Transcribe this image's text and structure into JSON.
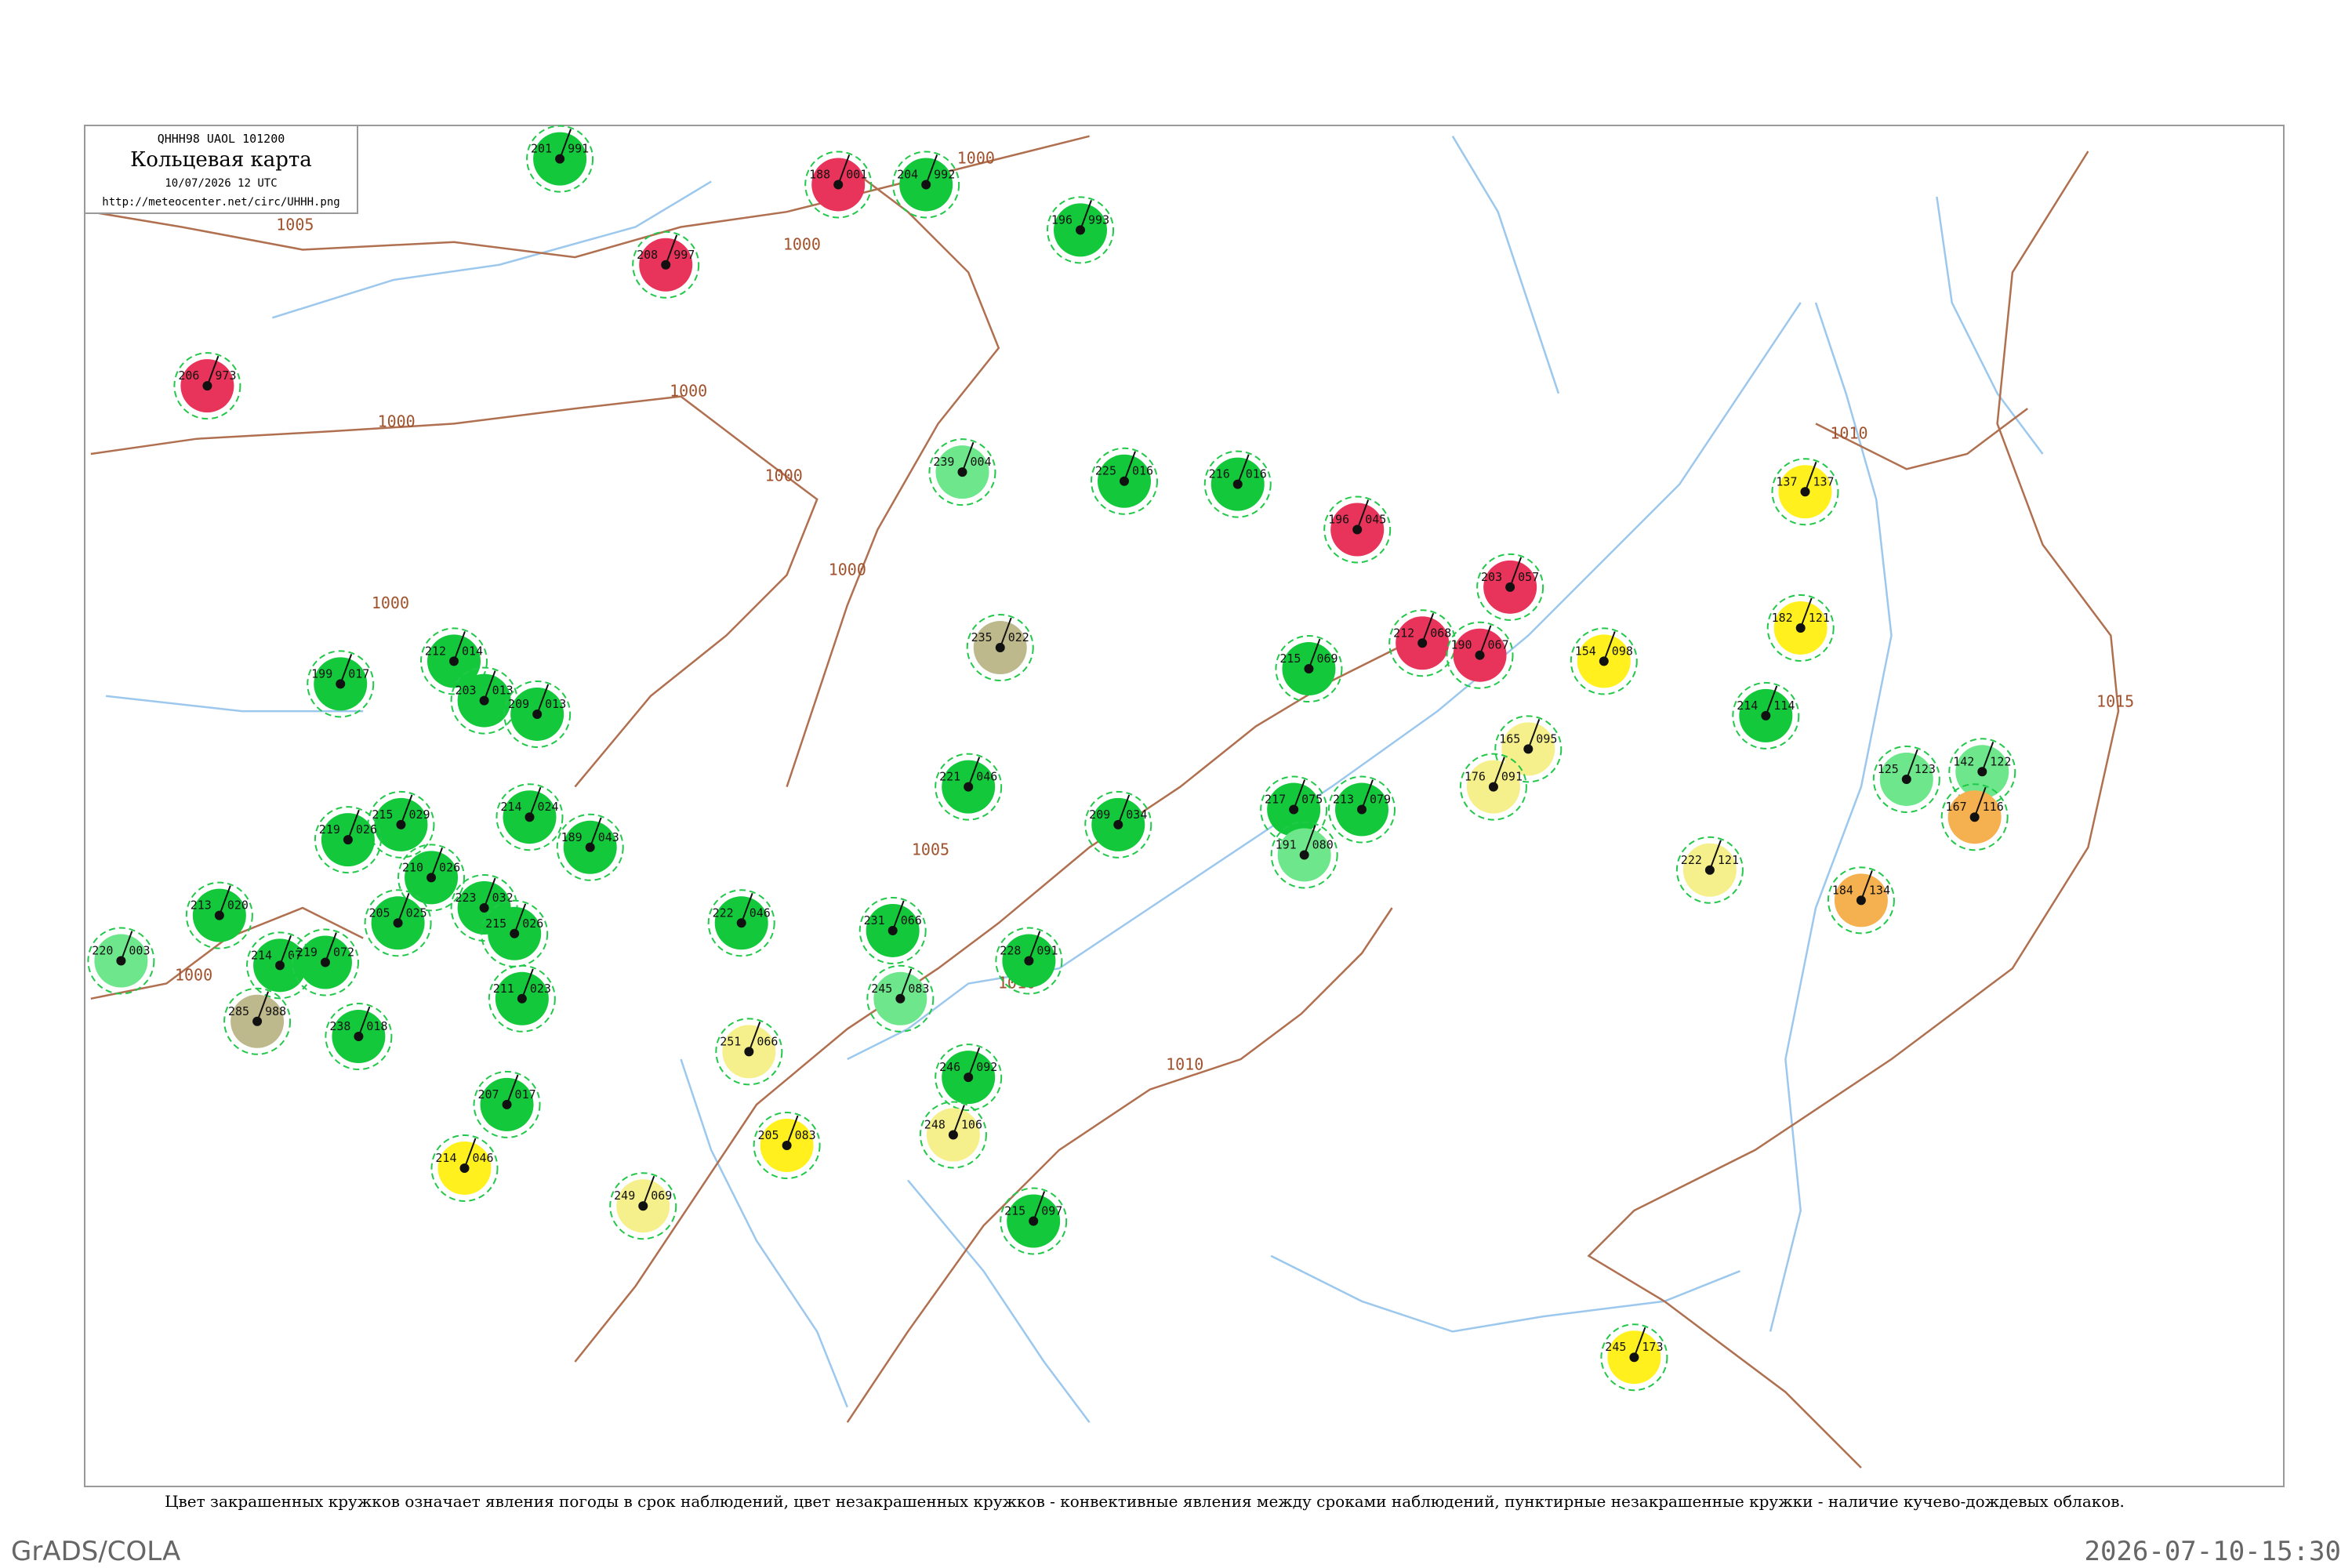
{
  "header": {
    "code": "QHHH98  UAOL  101200",
    "title": "Кольцевая карта",
    "time": "10/07/2026 12 UTC",
    "url": "http://meteocenter.net/circ/UHHH.png"
  },
  "caption": "Цвет закрашенных кружков означает явления погоды в срок наблюдений, цвет незакрашенных кружков - конвективные явления между сроками наблюдений, пунктирные незакрашенные кружки - наличие кучево-дождевых облаков.",
  "footer_left": "GrADS/COLA",
  "footer_right": "2026-07-10-15:30",
  "isobars": [
    "1005",
    "1000",
    "1000",
    "1000",
    "1000",
    "1000",
    "1005",
    "1010",
    "1010",
    "1000",
    "1000",
    "1010",
    "1015",
    "1000"
  ],
  "stations": [
    {
      "temp": "201",
      "press": "991",
      "color": "#14c83c"
    },
    {
      "temp": "188",
      "press": "001",
      "color": "#e8335a"
    },
    {
      "temp": "204",
      "press": "992",
      "color": "#14c83c"
    },
    {
      "temp": "196",
      "press": "993",
      "color": "#14c83c"
    },
    {
      "temp": "208",
      "press": "997",
      "color": "#e8335a"
    },
    {
      "temp": "206",
      "press": "973",
      "color": "#e8335a"
    },
    {
      "temp": "225",
      "press": "016",
      "color": "#14c83c"
    },
    {
      "temp": "216",
      "press": "016",
      "color": "#14c83c"
    },
    {
      "temp": "196",
      "press": "045",
      "color": "#e8335a"
    },
    {
      "temp": "239",
      "press": "004",
      "color": "#6ee68c"
    },
    {
      "temp": "203",
      "press": "057",
      "color": "#e8335a"
    },
    {
      "temp": "212",
      "press": "068",
      "color": "#e8335a"
    },
    {
      "temp": "190",
      "press": "067",
      "color": "#e8335a"
    },
    {
      "temp": "215",
      "press": "069",
      "color": "#14c83c"
    },
    {
      "temp": "199",
      "press": "017",
      "color": "#14c83c"
    },
    {
      "temp": "212",
      "press": "014",
      "color": "#14c83c"
    },
    {
      "temp": "203",
      "press": "013",
      "color": "#14c83c"
    },
    {
      "temp": "209",
      "press": "013",
      "color": "#14c83c"
    },
    {
      "temp": "235",
      "press": "022",
      "color": "#bdb98c"
    },
    {
      "temp": "154",
      "press": "098",
      "color": "#fff01e"
    },
    {
      "temp": "182",
      "press": "121",
      "color": "#fff01e"
    },
    {
      "temp": "137",
      "press": "137",
      "color": "#fff01e"
    },
    {
      "temp": "214",
      "press": "114",
      "color": "#14c83c"
    },
    {
      "temp": "125",
      "press": "123",
      "color": "#6ee68c"
    },
    {
      "temp": "142",
      "press": "122",
      "color": "#6ee68c"
    },
    {
      "temp": "167",
      "press": "116",
      "color": "#f5b050"
    },
    {
      "temp": "184",
      "press": "134",
      "color": "#f5b050"
    },
    {
      "temp": "222",
      "press": "121",
      "color": "#f5f08c"
    },
    {
      "temp": "165",
      "press": "095",
      "color": "#f5f08c"
    },
    {
      "temp": "176",
      "press": "091",
      "color": "#f5f08c"
    },
    {
      "temp": "217",
      "press": "075",
      "color": "#14c83c"
    },
    {
      "temp": "213",
      "press": "079",
      "color": "#14c83c"
    },
    {
      "temp": "191",
      "press": "080",
      "color": "#6ee68c"
    },
    {
      "temp": "221",
      "press": "046",
      "color": "#14c83c"
    },
    {
      "temp": "209",
      "press": "034",
      "color": "#14c83c"
    },
    {
      "temp": "215",
      "press": "029",
      "color": "#14c83c"
    },
    {
      "temp": "219",
      "press": "026",
      "color": "#14c83c"
    },
    {
      "temp": "214",
      "press": "024",
      "color": "#14c83c"
    },
    {
      "temp": "189",
      "press": "043",
      "color": "#14c83c"
    },
    {
      "temp": "210",
      "press": "026",
      "color": "#14c83c"
    },
    {
      "temp": "223",
      "press": "032",
      "color": "#14c83c"
    },
    {
      "temp": "205",
      "press": "025",
      "color": "#14c83c"
    },
    {
      "temp": "213",
      "press": "020",
      "color": "#14c83c"
    },
    {
      "temp": "220",
      "press": "003",
      "color": "#6ee68c"
    },
    {
      "temp": "214",
      "press": "077",
      "color": "#14c83c"
    },
    {
      "temp": "219",
      "press": "072",
      "color": "#14c83c"
    },
    {
      "temp": "215",
      "press": "026",
      "color": "#14c83c"
    },
    {
      "temp": "211",
      "press": "023",
      "color": "#14c83c"
    },
    {
      "temp": "238",
      "press": "018",
      "color": "#14c83c"
    },
    {
      "temp": "285",
      "press": "988",
      "color": "#bdb98c"
    },
    {
      "temp": "207",
      "press": "017",
      "color": "#14c83c"
    },
    {
      "temp": "222",
      "press": "046",
      "color": "#14c83c"
    },
    {
      "temp": "231",
      "press": "066",
      "color": "#14c83c"
    },
    {
      "temp": "245",
      "press": "083",
      "color": "#6ee68c"
    },
    {
      "temp": "228",
      "press": "091",
      "color": "#14c83c"
    },
    {
      "temp": "251",
      "press": "066",
      "color": "#f5f08c"
    },
    {
      "temp": "246",
      "press": "092",
      "color": "#14c83c"
    },
    {
      "temp": "248",
      "press": "106",
      "color": "#f5f08c"
    },
    {
      "temp": "205",
      "press": "083",
      "color": "#fff01e"
    },
    {
      "temp": "214",
      "press": "046",
      "color": "#fff01e"
    },
    {
      "temp": "249",
      "press": "069",
      "color": "#f5f08c"
    },
    {
      "temp": "215",
      "press": "097",
      "color": "#14c83c"
    },
    {
      "temp": "245",
      "press": "173",
      "color": "#fff01e"
    }
  ]
}
